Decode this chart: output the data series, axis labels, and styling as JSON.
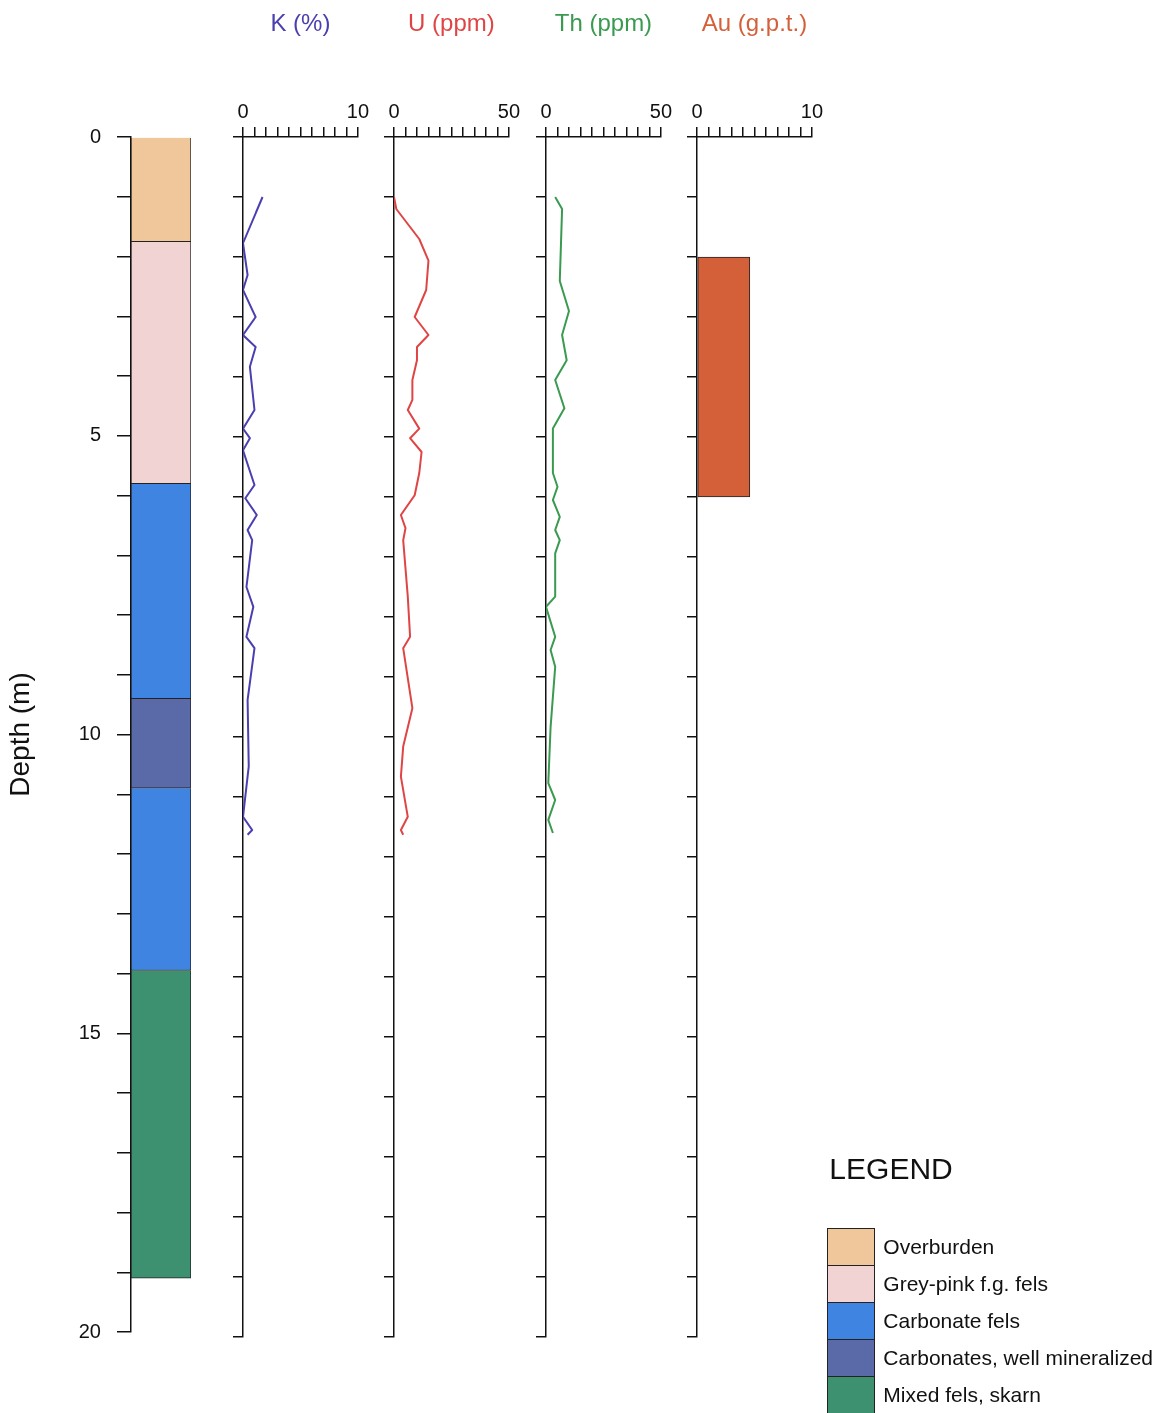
{
  "chart_data": [
    {
      "type": "bar",
      "stacked": true,
      "ylabel": "Depth (m)",
      "categories": [
        null
      ],
      "ylim": [
        20,
        0
      ],
      "yticks": [
        0,
        {
          "value": 1,
          "label": null
        },
        {
          "value": 2,
          "label": null
        },
        {
          "value": 3,
          "label": null
        },
        {
          "value": 4,
          "label": null
        },
        5,
        {
          "value": 6,
          "label": null
        },
        {
          "value": 7,
          "label": null
        },
        {
          "value": 8,
          "label": null
        },
        {
          "value": 9,
          "label": null
        },
        10,
        {
          "value": 11,
          "label": null
        },
        {
          "value": 12,
          "label": null
        },
        {
          "value": 13,
          "label": null
        },
        {
          "value": 14,
          "label": null
        },
        15,
        {
          "value": 16,
          "label": null
        },
        {
          "value": 17,
          "label": null
        },
        {
          "value": 18,
          "label": null
        },
        {
          "value": 19,
          "label": null
        },
        20
      ],
      "tick_labels": "y",
      "legend": "bottom right",
      "legend_title": "LEGEND",
      "series": [
        {
          "name": "Overburden",
          "color": "#efc79a",
          "values": [
            1.75
          ]
        },
        {
          "name": "Grey-pink f.g. fels",
          "color": "#f1d3d3",
          "values": [
            4.05
          ]
        },
        {
          "name": "Carbonate fels",
          "color": "#3f84e0",
          "values": [
            3.6
          ]
        },
        {
          "name": "Carbonates, well mineralized",
          "color": "#5a6aa8",
          "values": [
            1.5
          ]
        },
        {
          "color": "#3f84e0",
          "values": [
            3.05
          ]
        },
        {
          "name": "Mixed fels, skarn",
          "color": "#3d9070",
          "values": [
            5.15
          ]
        }
      ]
    },
    {
      "type": "line",
      "orientation": "horizontal",
      "xlabel": "K (%)",
      "marker": "none",
      "xlim": [
        0,
        10
      ],
      "xticks": [
        0,
        {
          "value": 1,
          "label": null
        },
        {
          "value": 2,
          "label": null
        },
        {
          "value": 3,
          "label": null
        },
        {
          "value": 4,
          "label": null
        },
        {
          "value": 5,
          "label": null
        },
        {
          "value": 6,
          "label": null
        },
        {
          "value": 7,
          "label": null
        },
        {
          "value": 8,
          "label": null
        },
        {
          "value": 9,
          "label": null
        },
        10
      ],
      "ylim": [
        20,
        0
      ],
      "yticks": [
        {
          "value": 0,
          "label": null
        },
        {
          "value": 1,
          "label": null
        },
        {
          "value": 2,
          "label": null
        },
        {
          "value": 3,
          "label": null
        },
        {
          "value": 4,
          "label": null
        },
        {
          "value": 5,
          "label": null
        },
        {
          "value": 6,
          "label": null
        },
        {
          "value": 7,
          "label": null
        },
        {
          "value": 8,
          "label": null
        },
        {
          "value": 9,
          "label": null
        },
        {
          "value": 10,
          "label": null
        },
        {
          "value": 11,
          "label": null
        },
        {
          "value": 12,
          "label": null
        },
        {
          "value": 13,
          "label": null
        },
        {
          "value": 14,
          "label": null
        },
        {
          "value": 15,
          "label": null
        },
        {
          "value": 16,
          "label": null
        },
        {
          "value": 17,
          "label": null
        },
        {
          "value": 18,
          "label": null
        },
        {
          "value": 19,
          "label": null
        },
        {
          "value": 20,
          "label": null
        }
      ],
      "tick_labels": "x",
      "series": [
        {
          "color": "#4a3fb0",
          "x": [
            1.0,
            1.77,
            2.3,
            2.55,
            3.0,
            3.3,
            3.5,
            3.83,
            4.55,
            4.86,
            5.02,
            5.22,
            5.8,
            6.02,
            6.3,
            6.55,
            6.72,
            7.5,
            7.83,
            8.33,
            8.52,
            9.38,
            10.49,
            11.33,
            11.55,
            11.63
          ],
          "values": [
            1.7,
            0,
            0.4,
            0,
            1.1,
            0,
            1.1,
            0.6,
            1.0,
            0,
            0.6,
            0,
            1.0,
            0.2,
            1.2,
            0.4,
            0.8,
            0.3,
            0.9,
            0.3,
            1.0,
            0.4,
            0.5,
            0,
            0.8,
            0.4
          ]
        }
      ]
    },
    {
      "type": "line",
      "orientation": "horizontal",
      "xlabel": "U (ppm)",
      "marker": "none",
      "xlim": [
        0,
        50
      ],
      "xticks": [
        0,
        {
          "value": 5,
          "label": null
        },
        {
          "value": 10,
          "label": null
        },
        {
          "value": 15,
          "label": null
        },
        {
          "value": 20,
          "label": null
        },
        {
          "value": 25,
          "label": null
        },
        {
          "value": 30,
          "label": null
        },
        {
          "value": 35,
          "label": null
        },
        {
          "value": 40,
          "label": null
        },
        {
          "value": 45,
          "label": null
        },
        50
      ],
      "ylim": [
        20,
        0
      ],
      "yticks": [
        {
          "value": 0,
          "label": null
        },
        {
          "value": 1,
          "label": null
        },
        {
          "value": 2,
          "label": null
        },
        {
          "value": 3,
          "label": null
        },
        {
          "value": 4,
          "label": null
        },
        {
          "value": 5,
          "label": null
        },
        {
          "value": 6,
          "label": null
        },
        {
          "value": 7,
          "label": null
        },
        {
          "value": 8,
          "label": null
        },
        {
          "value": 9,
          "label": null
        },
        {
          "value": 10,
          "label": null
        },
        {
          "value": 11,
          "label": null
        },
        {
          "value": 12,
          "label": null
        },
        {
          "value": 13,
          "label": null
        },
        {
          "value": 14,
          "label": null
        },
        {
          "value": 15,
          "label": null
        },
        {
          "value": 16,
          "label": null
        },
        {
          "value": 17,
          "label": null
        },
        {
          "value": 18,
          "label": null
        },
        {
          "value": 19,
          "label": null
        },
        {
          "value": 20,
          "label": null
        }
      ],
      "tick_labels": "x",
      "series": [
        {
          "color": "#e04545",
          "x": [
            1.0,
            1.2,
            1.7,
            2.06,
            2.55,
            3.0,
            3.3,
            3.5,
            3.72,
            4.05,
            4.38,
            4.55,
            4.86,
            5.02,
            5.25,
            5.6,
            5.97,
            6.3,
            6.52,
            6.72,
            7.66,
            8.33,
            8.52,
            9.52,
            10.16,
            10.66,
            11.33,
            11.55,
            11.63
          ],
          "values": [
            0,
            1,
            11,
            15,
            14,
            9,
            15,
            10,
            10,
            8,
            8,
            6,
            11,
            7,
            12,
            11,
            9,
            3,
            5,
            4,
            6,
            7,
            4,
            8,
            4,
            3,
            6,
            3,
            4
          ]
        }
      ]
    },
    {
      "type": "line",
      "orientation": "horizontal",
      "xlabel": "Th (ppm)",
      "marker": "none",
      "xlim": [
        0,
        50
      ],
      "xticks": [
        0,
        {
          "value": 5,
          "label": null
        },
        {
          "value": 10,
          "label": null
        },
        {
          "value": 15,
          "label": null
        },
        {
          "value": 20,
          "label": null
        },
        {
          "value": 25,
          "label": null
        },
        {
          "value": 30,
          "label": null
        },
        {
          "value": 35,
          "label": null
        },
        {
          "value": 40,
          "label": null
        },
        {
          "value": 45,
          "label": null
        },
        50
      ],
      "ylim": [
        20,
        0
      ],
      "yticks": [
        {
          "value": 0,
          "label": null
        },
        {
          "value": 1,
          "label": null
        },
        {
          "value": 2,
          "label": null
        },
        {
          "value": 3,
          "label": null
        },
        {
          "value": 4,
          "label": null
        },
        {
          "value": 5,
          "label": null
        },
        {
          "value": 6,
          "label": null
        },
        {
          "value": 7,
          "label": null
        },
        {
          "value": 8,
          "label": null
        },
        {
          "value": 9,
          "label": null
        },
        {
          "value": 10,
          "label": null
        },
        {
          "value": 11,
          "label": null
        },
        {
          "value": 12,
          "label": null
        },
        {
          "value": 13,
          "label": null
        },
        {
          "value": 14,
          "label": null
        },
        {
          "value": 15,
          "label": null
        },
        {
          "value": 16,
          "label": null
        },
        {
          "value": 17,
          "label": null
        },
        {
          "value": 18,
          "label": null
        },
        {
          "value": 19,
          "label": null
        },
        {
          "value": 20,
          "label": null
        }
      ],
      "tick_labels": "x",
      "series": [
        {
          "color": "#3a9a50",
          "x": [
            1.0,
            1.2,
            2.4,
            2.9,
            3.3,
            3.72,
            4.05,
            4.52,
            4.86,
            5.6,
            5.83,
            6.05,
            6.33,
            6.55,
            6.72,
            6.94,
            7.66,
            7.83,
            8.33,
            8.55,
            8.83,
            9.83,
            10.77,
            11.05,
            11.38,
            11.6
          ],
          "values": [
            4,
            7,
            6,
            10,
            7,
            9,
            4,
            8,
            3,
            3,
            5,
            3,
            6,
            4,
            6,
            4,
            4,
            0,
            4,
            2,
            4,
            2,
            1,
            4,
            1,
            3
          ]
        }
      ]
    },
    {
      "type": "histogram",
      "orientation": "horizontal",
      "xlabel": "Au (g.p.t.)",
      "color": "#d4603a",
      "bins": [
        2,
        6
      ],
      "values": [
        4.6
      ],
      "xlim": [
        0,
        10
      ],
      "xticks": [
        0,
        {
          "value": 1,
          "label": null
        },
        {
          "value": 2,
          "label": null
        },
        {
          "value": 3,
          "label": null
        },
        {
          "value": 4,
          "label": null
        },
        {
          "value": 5,
          "label": null
        },
        {
          "value": 6,
          "label": null
        },
        {
          "value": 7,
          "label": null
        },
        {
          "value": 8,
          "label": null
        },
        {
          "value": 9,
          "label": null
        },
        10
      ],
      "ylim": [
        20,
        0
      ],
      "yticks": [
        {
          "value": 0,
          "label": null
        },
        {
          "value": 1,
          "label": null
        },
        {
          "value": 2,
          "label": null
        },
        {
          "value": 3,
          "label": null
        },
        {
          "value": 4,
          "label": null
        },
        {
          "value": 5,
          "label": null
        },
        {
          "value": 6,
          "label": null
        },
        {
          "value": 7,
          "label": null
        },
        {
          "value": 8,
          "label": null
        },
        {
          "value": 9,
          "label": null
        },
        {
          "value": 10,
          "label": null
        },
        {
          "value": 11,
          "label": null
        },
        {
          "value": 12,
          "label": null
        },
        {
          "value": 13,
          "label": null
        },
        {
          "value": 14,
          "label": null
        },
        {
          "value": 15,
          "label": null
        },
        {
          "value": 16,
          "label": null
        },
        {
          "value": 17,
          "label": null
        },
        {
          "value": 18,
          "label": null
        },
        {
          "value": 19,
          "label": null
        },
        {
          "value": 20,
          "label": null
        }
      ],
      "tick_labels": "x"
    }
  ]
}
